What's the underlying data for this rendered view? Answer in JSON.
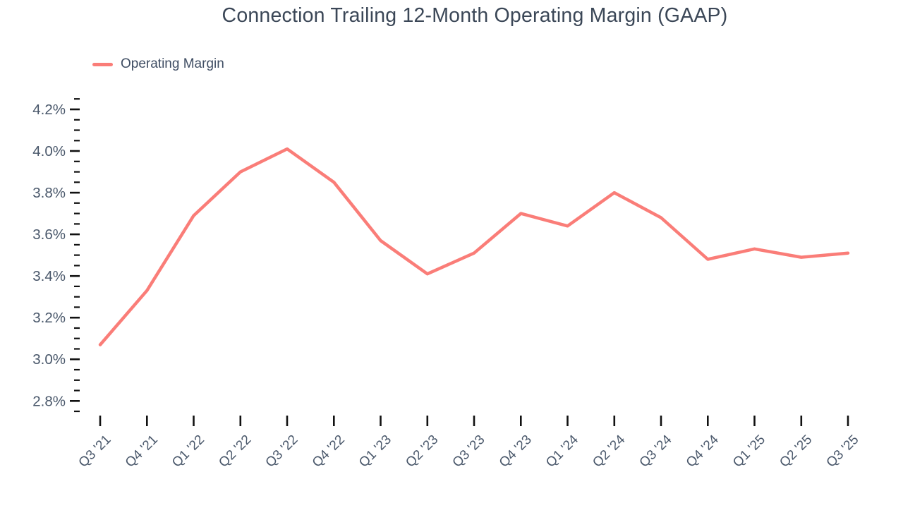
{
  "page": {
    "title": "Connection Trailing 12-Month Operating Margin (GAAP)"
  },
  "legend": {
    "label": "Operating Margin"
  },
  "colors": {
    "line": "#FA7D78",
    "tick": "#111111",
    "axis_label": "#4A586B",
    "title": "#3B4757"
  },
  "chart_data": {
    "type": "line",
    "title": "Connection Trailing 12-Month Operating Margin (GAAP)",
    "xlabel": "",
    "ylabel": "",
    "grid": false,
    "legend_position": "top-left",
    "categories": [
      "Q3 '21",
      "Q4 '21",
      "Q1 '22",
      "Q2 '22",
      "Q3 '22",
      "Q4 '22",
      "Q1 '23",
      "Q2 '23",
      "Q3 '23",
      "Q4 '23",
      "Q1 '24",
      "Q2 '24",
      "Q3 '24",
      "Q4 '24",
      "Q1 '25",
      "Q2 '25",
      "Q3 '25"
    ],
    "series": [
      {
        "name": "Operating Margin",
        "color": "#FA7D78",
        "values": [
          3.07,
          3.33,
          3.69,
          3.9,
          4.01,
          3.85,
          3.57,
          3.41,
          3.51,
          3.7,
          3.64,
          3.8,
          3.68,
          3.48,
          3.53,
          3.49,
          3.51
        ]
      }
    ],
    "y_axis": {
      "unit": "%",
      "ylim": [
        2.75,
        4.25
      ],
      "minor_step": 0.05,
      "major_step": 0.2,
      "ticks": [
        {
          "value": 2.8,
          "label": "2.8%"
        },
        {
          "value": 3.0,
          "label": "3.0%"
        },
        {
          "value": 3.2,
          "label": "3.2%"
        },
        {
          "value": 3.4,
          "label": "3.4%"
        },
        {
          "value": 3.6,
          "label": "3.6%"
        },
        {
          "value": 3.8,
          "label": "3.8%"
        },
        {
          "value": 4.0,
          "label": "4.0%"
        },
        {
          "value": 4.2,
          "label": "4.2%"
        }
      ]
    }
  }
}
